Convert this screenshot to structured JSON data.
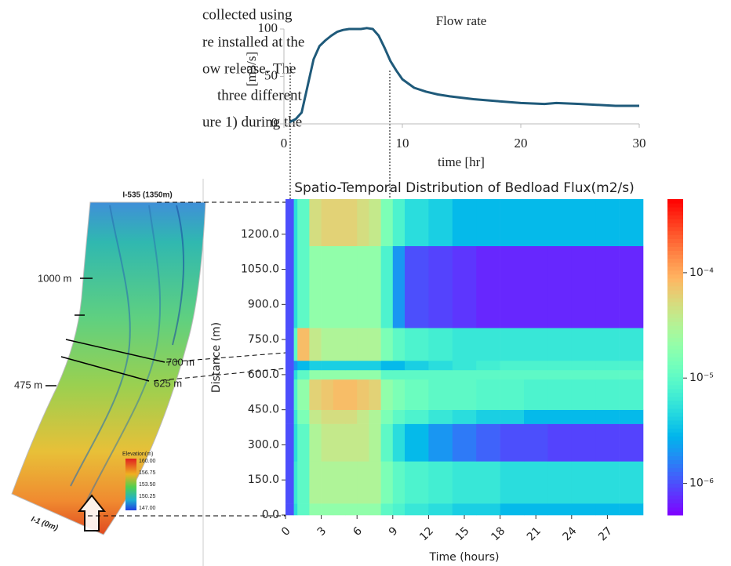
{
  "text_fragment": [
    "collected using",
    "re installed at the",
    "ow release. The",
    "three different",
    "ure 1) during the"
  ],
  "map": {
    "top_label": "I-535 (1350m)",
    "bottom_label": "I-1 (0m)",
    "label_1000": "1000 m",
    "label_700": "700 m",
    "label_625": "625 m",
    "label_475": "475 m",
    "legend_title": "Elevation(m)",
    "legend_ticks": [
      "160.00",
      "156.75",
      "153.50",
      "150.25",
      "147.00"
    ]
  },
  "chart_data": [
    {
      "type": "line",
      "title": "Flow rate",
      "ylabel": "[m3/s]",
      "xlabel": "time [hr]",
      "x": [
        0.5,
        1.0,
        1.5,
        2.0,
        2.5,
        3.0,
        3.5,
        4.0,
        4.5,
        5.0,
        5.5,
        6.0,
        6.5,
        7.0,
        7.5,
        8.0,
        8.5,
        9.0,
        9.5,
        10,
        11,
        12,
        13,
        14,
        16,
        18,
        20,
        22,
        23,
        25,
        28,
        30
      ],
      "values": [
        2,
        5,
        12,
        40,
        68,
        82,
        88,
        93,
        97,
        99,
        100,
        100,
        100,
        101,
        100,
        93,
        80,
        66,
        56,
        47,
        38,
        34,
        31,
        29,
        26,
        24,
        22,
        21,
        22,
        21,
        19,
        19
      ],
      "color": "#1f5a7a",
      "xlim": [
        0,
        30
      ],
      "xticks": [
        0,
        10,
        20,
        30
      ],
      "ylim": [
        0,
        100
      ],
      "yticks": [
        0,
        50,
        100
      ]
    },
    {
      "type": "heatmap",
      "title": "Spatio-Temporal Distribution of Bedload Flux(m2/s)",
      "ylabel": "Distance (m)",
      "xlabel": "Time (hours)",
      "x_edges": [
        0,
        0.7,
        1,
        2,
        3,
        4,
        5,
        6,
        7,
        8,
        9,
        10,
        12,
        14,
        16,
        18,
        20,
        22,
        24,
        26,
        28,
        30
      ],
      "y_edges": [
        0,
        50,
        230,
        390,
        450,
        580,
        620,
        660,
        800,
        1150,
        1350
      ],
      "values": [
        [
          1e-06,
          5e-06,
          1e-05,
          2e-05,
          2e-05,
          2e-05,
          2e-05,
          2e-05,
          2e-05,
          1e-05,
          8e-06,
          6e-06,
          5e-06,
          4e-06,
          4e-06,
          3e-06,
          3e-06,
          3e-06,
          3e-06,
          3e-06,
          3e-06
        ],
        [
          1e-06,
          6e-06,
          1e-05,
          3e-05,
          3e-05,
          3e-05,
          3e-05,
          3e-05,
          3e-05,
          1.5e-05,
          1e-05,
          8e-06,
          7e-06,
          6e-06,
          6e-06,
          5e-06,
          5e-06,
          5e-06,
          5e-06,
          5e-06,
          5e-06
        ],
        [
          1e-06,
          5e-06,
          1e-05,
          3e-05,
          4e-05,
          4e-05,
          4e-05,
          4e-05,
          3e-05,
          1e-05,
          5e-06,
          3e-06,
          2e-06,
          1.5e-06,
          1.2e-06,
          1e-06,
          1e-06,
          9e-07,
          9e-07,
          9e-07,
          9e-07
        ],
        [
          1e-06,
          6e-06,
          1.5e-05,
          4e-05,
          5e-05,
          5e-05,
          5e-05,
          4e-05,
          3e-05,
          1.5e-05,
          1e-05,
          8e-06,
          6e-06,
          5e-06,
          4e-06,
          4e-06,
          3e-06,
          3e-06,
          3e-06,
          3e-06,
          3e-06
        ],
        [
          1e-06,
          8e-06,
          2e-05,
          6e-05,
          7e-05,
          8e-05,
          8e-05,
          7e-05,
          6e-05,
          2e-05,
          1.5e-05,
          1.2e-05,
          1e-05,
          1e-05,
          9e-06,
          9e-06,
          8e-06,
          8e-06,
          8e-06,
          8e-06,
          8e-06
        ],
        [
          1e-06,
          5e-06,
          1e-05,
          2e-05,
          2e-05,
          2e-05,
          2e-05,
          2e-05,
          2e-05,
          1e-05,
          1e-05,
          1e-05,
          1e-05,
          1e-05,
          1e-05,
          1e-05,
          1e-05,
          1e-05,
          1e-05,
          1e-05,
          1e-05
        ],
        [
          1e-06,
          2e-06,
          3e-06,
          4e-06,
          4e-06,
          4e-06,
          4e-06,
          4e-06,
          4e-06,
          3e-06,
          3e-06,
          4e-06,
          5e-06,
          6e-06,
          7e-06,
          8e-06,
          8e-06,
          8e-06,
          8e-06,
          8e-06,
          8e-06
        ],
        [
          1e-06,
          1e-05,
          8e-05,
          4e-05,
          3e-05,
          3e-05,
          3e-05,
          3e-05,
          3e-05,
          1.5e-05,
          1e-05,
          8e-06,
          7e-06,
          6e-06,
          6e-06,
          6e-06,
          6e-06,
          6e-06,
          6e-06,
          6e-06,
          6e-06
        ],
        [
          1e-06,
          5e-06,
          1e-05,
          2e-05,
          2e-05,
          2e-05,
          2e-05,
          2e-05,
          2e-05,
          8e-06,
          2e-06,
          1e-06,
          9e-07,
          8e-07,
          7e-07,
          7e-07,
          7e-07,
          7e-07,
          7e-07,
          7e-07,
          7e-07
        ],
        [
          1e-06,
          5e-06,
          1e-05,
          5e-05,
          6e-05,
          6e-05,
          6e-05,
          5e-05,
          4e-05,
          1.5e-05,
          8e-06,
          5e-06,
          4e-06,
          3e-06,
          3e-06,
          3e-06,
          3e-06,
          3e-06,
          3e-06,
          3e-06,
          3e-06
        ]
      ],
      "colormap": "rainbow",
      "log_scale": true,
      "clim": [
        5e-07,
        0.0005
      ],
      "xlim": [
        0,
        30
      ],
      "xticks": [
        0,
        3,
        6,
        9,
        12,
        15,
        18,
        21,
        24,
        27
      ],
      "ylim": [
        0,
        1350
      ],
      "yticks": [
        {
          "value": 0,
          "label": "0.0"
        },
        {
          "value": 150,
          "label": "150.0"
        },
        {
          "value": 300,
          "label": "300.0"
        },
        {
          "value": 450,
          "label": "450.0"
        },
        {
          "value": 600,
          "label": "600.0"
        },
        {
          "value": 750,
          "label": "750.0"
        },
        {
          "value": 900,
          "label": "900.0"
        },
        {
          "value": 1050,
          "label": "1050.0"
        },
        {
          "value": 1200,
          "label": "1200.0"
        }
      ],
      "colorbar_ticks": [
        {
          "value": 0.0001,
          "label": "10⁻⁴"
        },
        {
          "value": 1e-05,
          "label": "10⁻⁵"
        },
        {
          "value": 1e-06,
          "label": "10⁻⁶"
        }
      ]
    }
  ]
}
